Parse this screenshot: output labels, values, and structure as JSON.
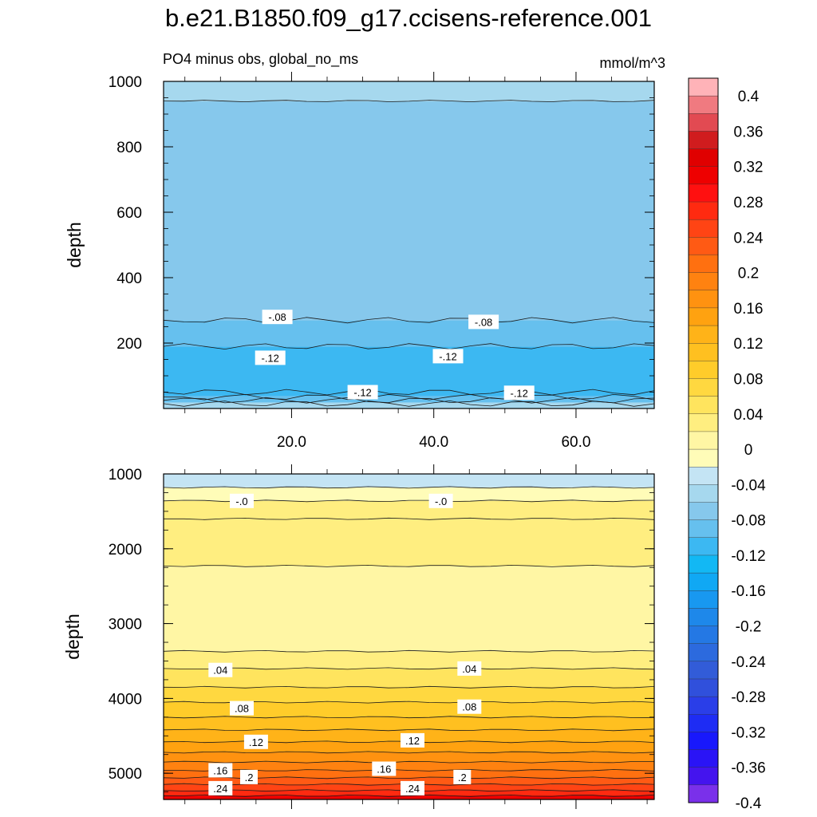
{
  "chart_data": {
    "type": "heatmap",
    "title": "b.e21.B1850.f09_g17.ccisens-reference.001",
    "subtitle_left": "PO4 minus obs, global_no_ms",
    "subtitle_right": "mmol/m^3",
    "xlim": [
      2,
      71
    ],
    "x_tick_values": [
      20.0,
      40.0,
      60.0
    ],
    "x_tick_labels": [
      "20.0",
      "40.0",
      "60.0"
    ],
    "levels": [
      -0.4,
      -0.38,
      -0.36,
      -0.34,
      -0.32,
      -0.3,
      -0.28,
      -0.26,
      -0.24,
      -0.22,
      -0.2,
      -0.18,
      -0.16,
      -0.14,
      -0.12,
      -0.1,
      -0.08,
      -0.06,
      -0.04,
      -0.02,
      0,
      0.02,
      0.04,
      0.06,
      0.08,
      0.1,
      0.12,
      0.14,
      0.16,
      0.18,
      0.2,
      0.22,
      0.24,
      0.26,
      0.28,
      0.3,
      0.32,
      0.34,
      0.36,
      0.38,
      0.4
    ],
    "colorbar_labels": [
      "0.4",
      "0.36",
      "0.32",
      "0.28",
      "0.24",
      "0.2",
      "0.16",
      "0.12",
      "0.08",
      "0.04",
      "0",
      "-0.04",
      "-0.08",
      "-0.12",
      "-0.16",
      "-0.2",
      "-0.24",
      "-0.28",
      "-0.32",
      "-0.36",
      "-0.4"
    ],
    "colorbar_colors": [
      "#ffb3b8",
      "#f07a80",
      "#e24a52",
      "#d01c1e",
      "#e00000",
      "#ee0000",
      "#ff1010",
      "#ff2a10",
      "#ff4414",
      "#ff5a14",
      "#ff7010",
      "#ff8210",
      "#ff9210",
      "#ffa210",
      "#ffb318",
      "#ffc020",
      "#ffcc2a",
      "#ffd840",
      "#ffe45e",
      "#ffee80",
      "#fff6a4",
      "#fffcb8",
      "#c4e4f4",
      "#a6d8ee",
      "#86c8ec",
      "#66c0ee",
      "#3cb8f2",
      "#12b8f4",
      "#10a8f4",
      "#1898f0",
      "#1e88ea",
      "#2478e4",
      "#2c6ade",
      "#325cd8",
      "#3050dc",
      "#2a3ee8",
      "#1e2cf4",
      "#1818fc",
      "#2a14f6",
      "#4414ee",
      "#7a30ea"
    ],
    "panels": [
      {
        "ylabel": "depth",
        "ylim": [
          1000,
          0
        ],
        "y_tick_values": [
          200,
          400,
          600,
          800,
          1000
        ],
        "y_tick_labels": [
          "200",
          "400",
          "600",
          "800",
          "1000"
        ],
        "bands": [
          {
            "from": 0,
            "to": 20,
            "value": -0.06
          },
          {
            "from": 20,
            "to": 40,
            "value": -0.1
          },
          {
            "from": 40,
            "to": 190,
            "value": -0.12
          },
          {
            "from": 190,
            "to": 270,
            "value": -0.1
          },
          {
            "from": 270,
            "to": 940,
            "value": -0.08
          },
          {
            "from": 940,
            "to": 1000,
            "value": -0.06
          }
        ],
        "contour_depths": [
          15,
          25,
          35,
          50,
          190,
          270,
          940
        ],
        "contour_labels": [
          {
            "text": "-.12",
            "x": 30,
            "depth": 50
          },
          {
            "text": "-.12",
            "x": 52,
            "depth": 48
          },
          {
            "text": "-.12",
            "x": 17,
            "depth": 155
          },
          {
            "text": "-.12",
            "x": 42,
            "depth": 160
          },
          {
            "text": "-.08",
            "x": 18,
            "depth": 280
          },
          {
            "text": "-.08",
            "x": 47,
            "depth": 265
          }
        ]
      },
      {
        "ylabel": "depth",
        "ylim": [
          1000,
          5350
        ],
        "y_tick_values": [
          1000,
          2000,
          3000,
          4000,
          5000
        ],
        "y_tick_labels": [
          "1000",
          "2000",
          "3000",
          "4000",
          "5000"
        ],
        "bands": [
          {
            "from": 1000,
            "to": 1180,
            "value": -0.04
          },
          {
            "from": 1180,
            "to": 1360,
            "value": -0.02
          },
          {
            "from": 1360,
            "to": 1600,
            "value": 0.02
          },
          {
            "from": 1600,
            "to": 2230,
            "value": 0.02
          },
          {
            "from": 2230,
            "to": 3370,
            "value": 0.0
          },
          {
            "from": 3370,
            "to": 3600,
            "value": 0.02
          },
          {
            "from": 3600,
            "to": 3850,
            "value": 0.04
          },
          {
            "from": 3850,
            "to": 4050,
            "value": 0.06
          },
          {
            "from": 4050,
            "to": 4250,
            "value": 0.08
          },
          {
            "from": 4250,
            "to": 4420,
            "value": 0.1
          },
          {
            "from": 4420,
            "to": 4580,
            "value": 0.12
          },
          {
            "from": 4580,
            "to": 4720,
            "value": 0.14
          },
          {
            "from": 4720,
            "to": 4850,
            "value": 0.16
          },
          {
            "from": 4850,
            "to": 4960,
            "value": 0.18
          },
          {
            "from": 4960,
            "to": 5060,
            "value": 0.2
          },
          {
            "from": 5060,
            "to": 5150,
            "value": 0.22
          },
          {
            "from": 5150,
            "to": 5230,
            "value": 0.24
          },
          {
            "from": 5230,
            "to": 5300,
            "value": 0.26
          },
          {
            "from": 5300,
            "to": 5350,
            "value": 0.3
          }
        ],
        "contour_depths": [
          1180,
          1360,
          1600,
          2230,
          3370,
          3600,
          3850,
          4050,
          4250,
          4420,
          4580,
          4720,
          4850,
          4960,
          5060,
          5150,
          5230,
          5300
        ],
        "contour_labels": [
          {
            "text": "-.0",
            "x": 13,
            "depth": 1360
          },
          {
            "text": "-.0",
            "x": 41,
            "depth": 1360
          },
          {
            "text": ".04",
            "x": 10,
            "depth": 3620
          },
          {
            "text": ".04",
            "x": 45,
            "depth": 3600
          },
          {
            "text": ".08",
            "x": 13,
            "depth": 4130
          },
          {
            "text": ".08",
            "x": 45,
            "depth": 4110
          },
          {
            "text": ".12",
            "x": 15,
            "depth": 4580
          },
          {
            "text": ".12",
            "x": 37,
            "depth": 4560
          },
          {
            "text": ".16",
            "x": 10,
            "depth": 4960
          },
          {
            "text": ".16",
            "x": 33,
            "depth": 4940
          },
          {
            "text": ".2",
            "x": 14,
            "depth": 5050
          },
          {
            "text": ".2",
            "x": 44,
            "depth": 5050
          },
          {
            "text": ".24",
            "x": 10,
            "depth": 5200
          },
          {
            "text": ".24",
            "x": 37,
            "depth": 5200
          }
        ]
      }
    ]
  }
}
